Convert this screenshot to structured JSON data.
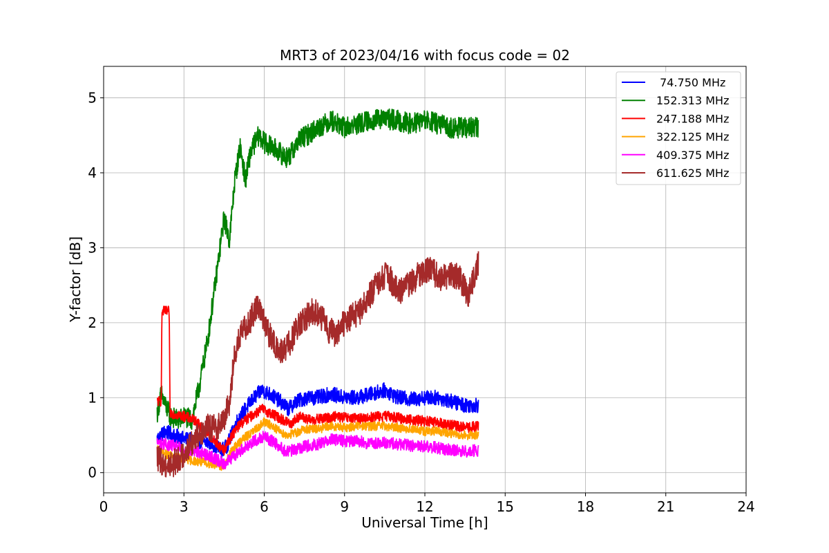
{
  "chart_data": {
    "type": "line",
    "title": "MRT3 of 2023/04/16 with focus code = 02",
    "xlabel": "Universal Time [h]",
    "ylabel": "Y-factor [dB]",
    "xlim": [
      0,
      24
    ],
    "ylim": [
      -0.27,
      5.42
    ],
    "xticks": [
      0,
      3,
      6,
      9,
      12,
      15,
      18,
      21,
      24
    ],
    "yticks": [
      0,
      1,
      2,
      3,
      4,
      5
    ],
    "grid": true,
    "legend_position": "top-right",
    "series": [
      {
        "name": " 74.750 MHz",
        "color": "#0000ff",
        "noise": 0.1,
        "points": [
          [
            2.0,
            0.45
          ],
          [
            2.3,
            0.55
          ],
          [
            2.6,
            0.5
          ],
          [
            3.0,
            0.45
          ],
          [
            3.5,
            0.42
          ],
          [
            4.0,
            0.4
          ],
          [
            4.4,
            0.3
          ],
          [
            4.6,
            0.35
          ],
          [
            5.0,
            0.7
          ],
          [
            5.5,
            0.95
          ],
          [
            5.9,
            1.1
          ],
          [
            6.2,
            1.05
          ],
          [
            6.6,
            0.95
          ],
          [
            6.9,
            0.85
          ],
          [
            7.2,
            0.95
          ],
          [
            7.6,
            1.0
          ],
          [
            8.0,
            1.0
          ],
          [
            8.5,
            1.05
          ],
          [
            9.0,
            1.0
          ],
          [
            9.5,
            1.0
          ],
          [
            10.0,
            1.05
          ],
          [
            10.5,
            1.1
          ],
          [
            11.0,
            1.0
          ],
          [
            11.5,
            0.98
          ],
          [
            12.0,
            1.0
          ],
          [
            12.5,
            1.0
          ],
          [
            13.0,
            0.95
          ],
          [
            13.5,
            0.9
          ],
          [
            14.0,
            0.9
          ]
        ]
      },
      {
        "name": "152.313 MHz",
        "color": "#008000",
        "noise": 0.14,
        "points": [
          [
            2.0,
            0.8
          ],
          [
            2.15,
            1.05
          ],
          [
            2.3,
            0.9
          ],
          [
            2.5,
            0.75
          ],
          [
            2.8,
            0.7
          ],
          [
            3.0,
            0.75
          ],
          [
            3.3,
            0.7
          ],
          [
            3.6,
            1.2
          ],
          [
            3.9,
            1.8
          ],
          [
            4.2,
            2.6
          ],
          [
            4.5,
            3.4
          ],
          [
            4.7,
            3.1
          ],
          [
            4.9,
            3.9
          ],
          [
            5.1,
            4.35
          ],
          [
            5.3,
            3.9
          ],
          [
            5.5,
            4.3
          ],
          [
            5.8,
            4.5
          ],
          [
            6.0,
            4.4
          ],
          [
            6.5,
            4.3
          ],
          [
            6.8,
            4.2
          ],
          [
            7.0,
            4.25
          ],
          [
            7.3,
            4.45
          ],
          [
            7.6,
            4.5
          ],
          [
            8.0,
            4.6
          ],
          [
            8.5,
            4.7
          ],
          [
            9.0,
            4.6
          ],
          [
            9.5,
            4.65
          ],
          [
            10.0,
            4.7
          ],
          [
            10.5,
            4.72
          ],
          [
            11.0,
            4.7
          ],
          [
            11.5,
            4.65
          ],
          [
            12.0,
            4.7
          ],
          [
            12.5,
            4.65
          ],
          [
            13.0,
            4.6
          ],
          [
            13.5,
            4.6
          ],
          [
            14.0,
            4.6
          ]
        ]
      },
      {
        "name": "247.188 MHz",
        "color": "#ff0000",
        "noise": 0.07,
        "points": [
          [
            2.0,
            0.95
          ],
          [
            2.15,
            0.95
          ],
          [
            2.18,
            2.15
          ],
          [
            2.45,
            2.15
          ],
          [
            2.48,
            0.8
          ],
          [
            2.7,
            0.78
          ],
          [
            3.0,
            0.75
          ],
          [
            3.4,
            0.7
          ],
          [
            3.8,
            0.55
          ],
          [
            4.2,
            0.4
          ],
          [
            4.5,
            0.3
          ],
          [
            4.8,
            0.5
          ],
          [
            5.1,
            0.65
          ],
          [
            5.5,
            0.75
          ],
          [
            5.9,
            0.85
          ],
          [
            6.3,
            0.78
          ],
          [
            6.7,
            0.7
          ],
          [
            7.0,
            0.65
          ],
          [
            7.3,
            0.75
          ],
          [
            7.7,
            0.7
          ],
          [
            8.2,
            0.72
          ],
          [
            8.7,
            0.75
          ],
          [
            9.2,
            0.72
          ],
          [
            9.7,
            0.72
          ],
          [
            10.2,
            0.75
          ],
          [
            10.7,
            0.75
          ],
          [
            11.2,
            0.72
          ],
          [
            11.7,
            0.7
          ],
          [
            12.2,
            0.68
          ],
          [
            12.7,
            0.65
          ],
          [
            13.2,
            0.62
          ],
          [
            13.6,
            0.6
          ],
          [
            14.0,
            0.62
          ]
        ]
      },
      {
        "name": "322.125 MHz",
        "color": "#ffa500",
        "noise": 0.06,
        "points": [
          [
            2.0,
            0.3
          ],
          [
            2.3,
            0.25
          ],
          [
            2.7,
            0.2
          ],
          [
            3.0,
            0.18
          ],
          [
            3.5,
            0.15
          ],
          [
            4.0,
            0.12
          ],
          [
            4.5,
            0.08
          ],
          [
            4.8,
            0.3
          ],
          [
            5.2,
            0.45
          ],
          [
            5.6,
            0.55
          ],
          [
            6.0,
            0.68
          ],
          [
            6.4,
            0.6
          ],
          [
            6.8,
            0.5
          ],
          [
            7.1,
            0.52
          ],
          [
            7.5,
            0.58
          ],
          [
            8.0,
            0.58
          ],
          [
            8.5,
            0.62
          ],
          [
            9.0,
            0.6
          ],
          [
            9.5,
            0.62
          ],
          [
            10.0,
            0.62
          ],
          [
            10.5,
            0.62
          ],
          [
            11.0,
            0.6
          ],
          [
            11.5,
            0.58
          ],
          [
            12.0,
            0.55
          ],
          [
            12.5,
            0.55
          ],
          [
            13.0,
            0.52
          ],
          [
            13.5,
            0.5
          ],
          [
            14.0,
            0.5
          ]
        ]
      },
      {
        "name": "409.375 MHz",
        "color": "#ff00ff",
        "noise": 0.08,
        "points": [
          [
            2.0,
            0.4
          ],
          [
            2.3,
            0.38
          ],
          [
            2.7,
            0.35
          ],
          [
            3.0,
            0.3
          ],
          [
            3.5,
            0.28
          ],
          [
            4.0,
            0.22
          ],
          [
            4.5,
            0.12
          ],
          [
            4.8,
            0.2
          ],
          [
            5.2,
            0.32
          ],
          [
            5.6,
            0.42
          ],
          [
            6.0,
            0.48
          ],
          [
            6.4,
            0.4
          ],
          [
            6.8,
            0.28
          ],
          [
            7.1,
            0.3
          ],
          [
            7.5,
            0.35
          ],
          [
            8.0,
            0.38
          ],
          [
            8.5,
            0.45
          ],
          [
            9.0,
            0.42
          ],
          [
            9.5,
            0.42
          ],
          [
            10.0,
            0.38
          ],
          [
            10.5,
            0.4
          ],
          [
            11.0,
            0.38
          ],
          [
            11.5,
            0.36
          ],
          [
            12.0,
            0.35
          ],
          [
            12.5,
            0.33
          ],
          [
            13.0,
            0.3
          ],
          [
            13.5,
            0.28
          ],
          [
            14.0,
            0.3
          ]
        ]
      },
      {
        "name": "611.625 MHz",
        "color": "#a52a2a",
        "noise": 0.18,
        "points": [
          [
            2.0,
            0.2
          ],
          [
            2.3,
            0.1
          ],
          [
            2.6,
            0.12
          ],
          [
            3.0,
            0.25
          ],
          [
            3.4,
            0.45
          ],
          [
            3.8,
            0.6
          ],
          [
            4.2,
            0.6
          ],
          [
            4.5,
            0.7
          ],
          [
            4.7,
            0.95
          ],
          [
            4.9,
            1.6
          ],
          [
            5.2,
            1.9
          ],
          [
            5.5,
            2.05
          ],
          [
            5.8,
            2.25
          ],
          [
            6.0,
            2.0
          ],
          [
            6.3,
            1.75
          ],
          [
            6.6,
            1.6
          ],
          [
            6.9,
            1.7
          ],
          [
            7.2,
            1.9
          ],
          [
            7.5,
            2.05
          ],
          [
            7.8,
            2.15
          ],
          [
            8.1,
            2.1
          ],
          [
            8.4,
            1.9
          ],
          [
            8.7,
            1.85
          ],
          [
            9.0,
            2.0
          ],
          [
            9.3,
            2.1
          ],
          [
            9.6,
            2.15
          ],
          [
            10.0,
            2.4
          ],
          [
            10.3,
            2.55
          ],
          [
            10.6,
            2.65
          ],
          [
            11.0,
            2.4
          ],
          [
            11.4,
            2.5
          ],
          [
            11.8,
            2.65
          ],
          [
            12.2,
            2.7
          ],
          [
            12.6,
            2.6
          ],
          [
            13.0,
            2.65
          ],
          [
            13.3,
            2.6
          ],
          [
            13.6,
            2.35
          ],
          [
            14.0,
            2.8
          ]
        ]
      }
    ]
  }
}
